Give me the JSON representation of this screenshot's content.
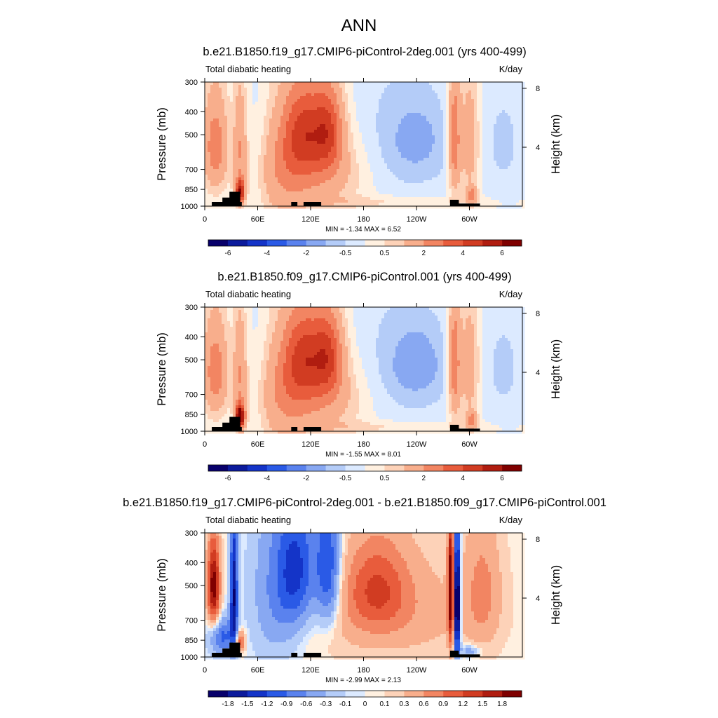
{
  "figure": {
    "title": "ANN"
  },
  "chart_data": [
    {
      "type": "heatmap",
      "title": "b.e21.B1850.f19_g17.CMIP6-piControl-2deg.001 (yrs 400-499)",
      "left_label": "Total diabatic heating",
      "right_label": "K/day",
      "ylabel": "Pressure (mb)",
      "y2label": "Height (km)",
      "x_ticks": [
        "0",
        "60E",
        "120E",
        "180",
        "120W",
        "60W"
      ],
      "y_ticks": [
        "300",
        "400",
        "500",
        "700",
        "850",
        "1000"
      ],
      "y2_ticks": [
        "8",
        "4"
      ],
      "xlim": [
        0,
        360
      ],
      "ylim": [
        1000,
        300
      ],
      "stats": "MIN =  -1.34  MAX =   6.52",
      "min": -1.34,
      "max": 6.52,
      "colorbar": {
        "colors": [
          "#08006b",
          "#0c1b9c",
          "#1434c8",
          "#2a5ae6",
          "#5a82ee",
          "#88a8f2",
          "#b4ccf8",
          "#dceaff",
          "#fff0e0",
          "#fdd2b8",
          "#f8ae8c",
          "#f28562",
          "#e85c3c",
          "#d13c22",
          "#b01d10",
          "#7f0000"
        ],
        "tick_labels": [
          "-6",
          "-4",
          "-2",
          "-0.5",
          "0.5",
          "2",
          "4",
          "6"
        ]
      },
      "features": [
        {
          "lon": 10,
          "lev": 550,
          "value": 2.5
        },
        {
          "lon": 40,
          "lev": 880,
          "value": 5.5
        },
        {
          "lon": 115,
          "lev": 480,
          "value": 3.5
        },
        {
          "lon": 140,
          "lev": 480,
          "value": 3.5
        },
        {
          "lon": 240,
          "lev": 520,
          "value": -1.2
        },
        {
          "lon": 283,
          "lev": 500,
          "value": 2.8
        }
      ]
    },
    {
      "type": "heatmap",
      "title": "b.e21.B1850.f09_g17.CMIP6-piControl.001 (yrs 400-499)",
      "left_label": "Total diabatic heating",
      "right_label": "K/day",
      "ylabel": "Pressure (mb)",
      "y2label": "Height (km)",
      "x_ticks": [
        "0",
        "60E",
        "120E",
        "180",
        "120W",
        "60W"
      ],
      "y_ticks": [
        "300",
        "400",
        "500",
        "700",
        "850",
        "1000"
      ],
      "y2_ticks": [
        "8",
        "4"
      ],
      "xlim": [
        0,
        360
      ],
      "ylim": [
        1000,
        300
      ],
      "stats": "MIN =  -1.55  MAX =   8.01",
      "min": -1.55,
      "max": 8.01,
      "colorbar": {
        "colors": [
          "#08006b",
          "#0c1b9c",
          "#1434c8",
          "#2a5ae6",
          "#5a82ee",
          "#88a8f2",
          "#b4ccf8",
          "#dceaff",
          "#fff0e0",
          "#fdd2b8",
          "#f8ae8c",
          "#f28562",
          "#e85c3c",
          "#d13c22",
          "#b01d10",
          "#7f0000"
        ],
        "tick_labels": [
          "-6",
          "-4",
          "-2",
          "-0.5",
          "0.5",
          "2",
          "4",
          "6"
        ]
      },
      "features": [
        {
          "lon": 40,
          "lev": 880,
          "value": 7.0
        },
        {
          "lon": 115,
          "lev": 480,
          "value": 3.8
        },
        {
          "lon": 140,
          "lev": 480,
          "value": 3.8
        },
        {
          "lon": 235,
          "lev": 550,
          "value": -1.5
        },
        {
          "lon": 283,
          "lev": 500,
          "value": 3.0
        }
      ]
    },
    {
      "type": "heatmap",
      "title": "b.e21.B1850.f19_g17.CMIP6-piControl-2deg.001 - b.e21.B1850.f09_g17.CMIP6-piControl.001",
      "left_label": "Total diabatic heating",
      "right_label": "K/day",
      "ylabel": "Pressure (mb)",
      "y2label": "Height (km)",
      "x_ticks": [
        "0",
        "60E",
        "120E",
        "180",
        "120W",
        "60W"
      ],
      "y_ticks": [
        "300",
        "400",
        "500",
        "700",
        "850",
        "1000"
      ],
      "y2_ticks": [
        "8",
        "4"
      ],
      "xlim": [
        0,
        360
      ],
      "ylim": [
        1000,
        300
      ],
      "stats": "MIN =  -2.99  MAX =   2.13",
      "min": -2.99,
      "max": 2.13,
      "colorbar": {
        "colors": [
          "#08006b",
          "#0c1b9c",
          "#1434c8",
          "#2a5ae6",
          "#5a82ee",
          "#88a8f2",
          "#b4ccf8",
          "#dceaff",
          "#fff0e0",
          "#fdd2b8",
          "#f8ae8c",
          "#f28562",
          "#e85c3c",
          "#d13c22",
          "#b01d10",
          "#7f0000"
        ],
        "tick_labels": [
          "-1.8",
          "-1.5",
          "-1.2",
          "-0.9",
          "-0.6",
          "-0.3",
          "-0.1",
          "0",
          "0.1",
          "0.3",
          "0.6",
          "0.9",
          "1.2",
          "1.5",
          "1.8"
        ]
      },
      "features": [
        {
          "lon": 10,
          "lev": 500,
          "value": 2.0
        },
        {
          "lon": 35,
          "lev": 500,
          "value": -1.8
        },
        {
          "lon": 115,
          "lev": 400,
          "value": -1.5
        },
        {
          "lon": 195,
          "lev": 500,
          "value": 0.9
        },
        {
          "lon": 280,
          "lev": 500,
          "value": 2.1
        },
        {
          "lon": 287,
          "lev": 600,
          "value": -2.9
        }
      ]
    }
  ]
}
